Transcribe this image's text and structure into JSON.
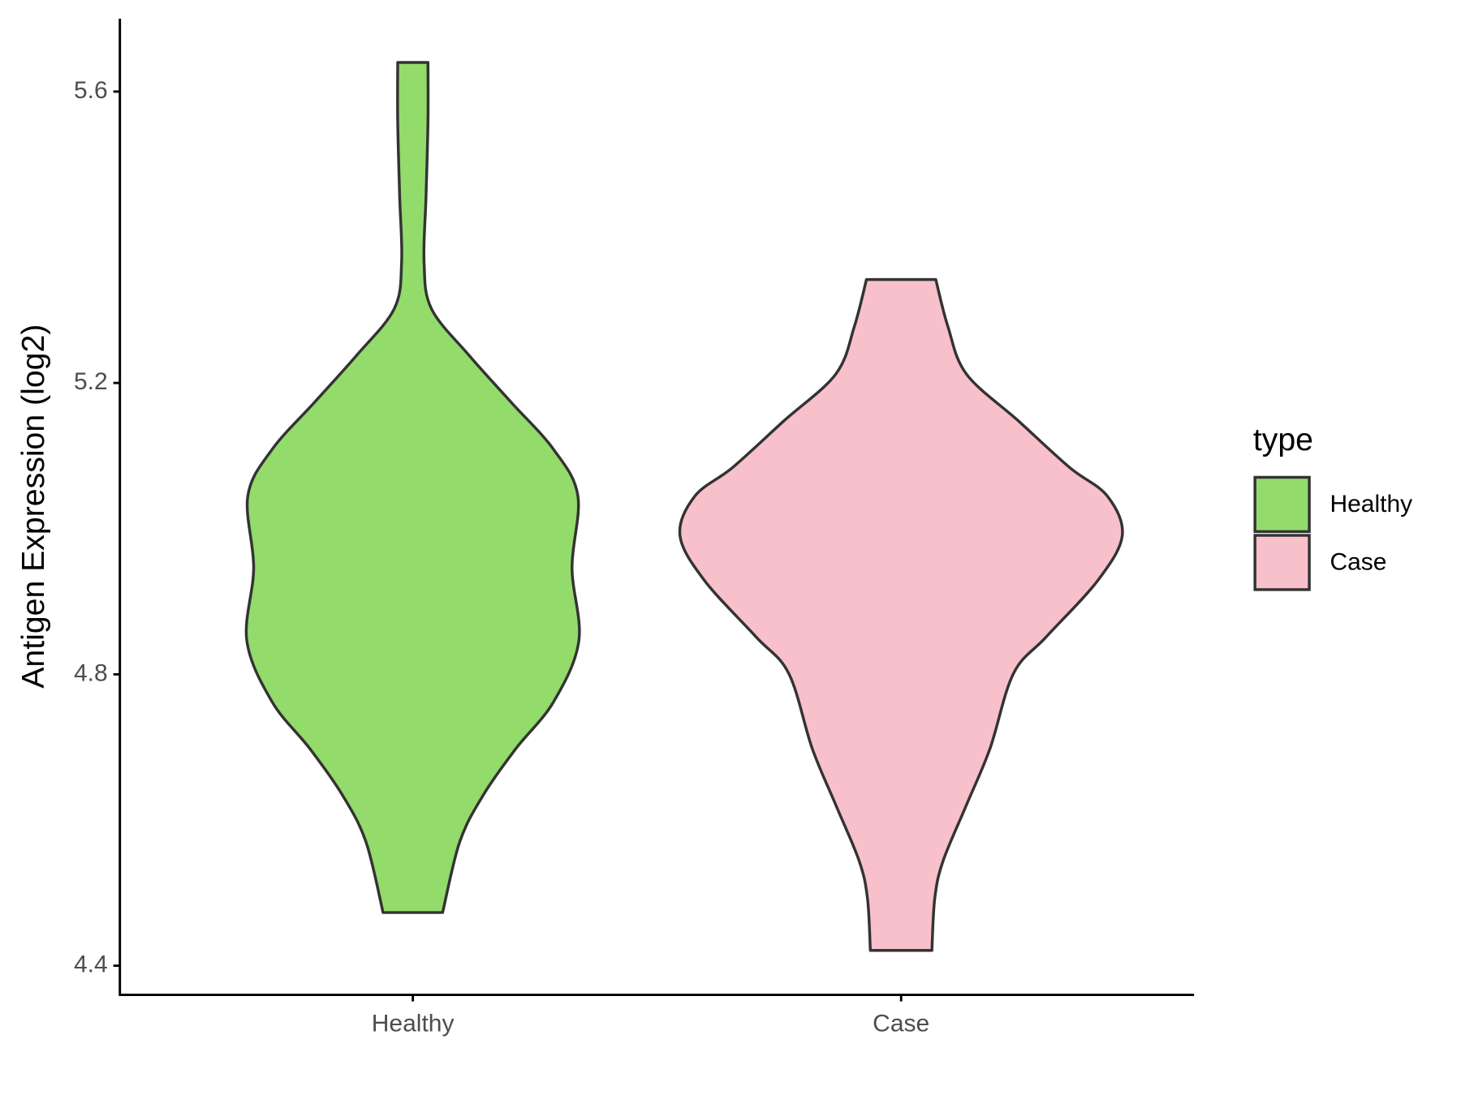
{
  "chart_data": {
    "type": "violin",
    "y_label": "Antigen Expression (log2)",
    "categories": [
      "Healthy",
      "Case"
    ],
    "ylim": [
      4.36,
      5.7
    ],
    "yticks": [
      4.4,
      4.8,
      5.2,
      5.6
    ],
    "legend_title": "type",
    "legend_position": "right",
    "series": [
      {
        "name": "Healthy",
        "color": "#93db6b",
        "y": [
          4.473,
          4.57,
          4.634,
          4.698,
          4.762,
          4.846,
          4.946,
          5.045,
          5.109,
          5.173,
          5.238,
          5.302,
          5.366,
          5.456,
          5.559,
          5.64
        ],
        "widths": [
          0.061,
          0.096,
          0.144,
          0.211,
          0.288,
          0.34,
          0.326,
          0.338,
          0.288,
          0.202,
          0.115,
          0.038,
          0.023,
          0.027,
          0.031,
          0.031
        ]
      },
      {
        "name": "Case",
        "color": "#f7c0cb",
        "y": [
          4.421,
          4.493,
          4.544,
          4.621,
          4.698,
          4.801,
          4.852,
          4.929,
          4.991,
          5.045,
          5.084,
          5.148,
          5.212,
          5.277,
          5.342
        ],
        "widths": [
          0.063,
          0.069,
          0.086,
          0.134,
          0.182,
          0.23,
          0.298,
          0.403,
          0.453,
          0.422,
          0.345,
          0.24,
          0.134,
          0.096,
          0.071
        ]
      }
    ]
  }
}
